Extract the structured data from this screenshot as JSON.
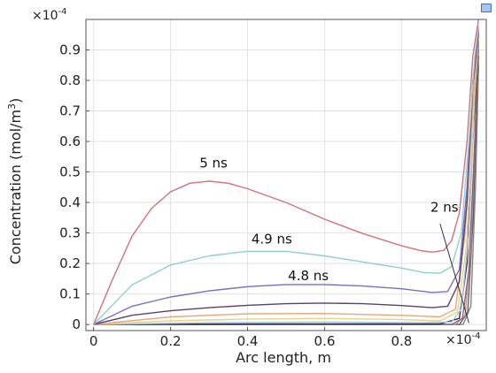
{
  "corner_icon": "plot-window-icon",
  "chart_data": {
    "type": "line",
    "title": "",
    "xlabel": "Arc length, m",
    "ylabel_main": "Concentration (mol/m",
    "ylabel_sup": "3",
    "ylabel_end": ")",
    "x_multiplier": "×10",
    "x_multiplier_exp": "-4",
    "y_multiplier": "×10",
    "y_multiplier_exp": "-4",
    "xlim": [
      -0.02,
      1.02
    ],
    "ylim": [
      -0.02,
      1.0
    ],
    "x_ticks": [
      0,
      0.2,
      0.4,
      0.6,
      0.8
    ],
    "x_tick_labels": [
      "0",
      "0.2",
      "0.4",
      "0.6",
      "0.8"
    ],
    "y_ticks": [
      0,
      0.1,
      0.2,
      0.3,
      0.4,
      0.5,
      0.6,
      0.7,
      0.8,
      0.9
    ],
    "y_tick_labels": [
      "0",
      "0.1",
      "0.2",
      "0.3",
      "0.4",
      "0.5",
      "0.6",
      "0.7",
      "0.8",
      "0.9"
    ],
    "grid": true,
    "annotations": [
      {
        "text": "5 ns",
        "x": 0.275,
        "y": 0.515
      },
      {
        "text": "4.9 ns",
        "x": 0.41,
        "y": 0.265
      },
      {
        "text": "4.8 ns",
        "x": 0.505,
        "y": 0.145
      },
      {
        "text": "2 ns",
        "x": 0.875,
        "y": 0.37
      }
    ],
    "pointer": {
      "from": [
        0.9,
        0.33
      ],
      "to": [
        0.975,
        0.005
      ]
    },
    "series": [
      {
        "color": "#d4707e",
        "points": [
          [
            0,
            0
          ],
          [
            0.05,
            0.15
          ],
          [
            0.1,
            0.29
          ],
          [
            0.15,
            0.38
          ],
          [
            0.2,
            0.435
          ],
          [
            0.25,
            0.463
          ],
          [
            0.3,
            0.47
          ],
          [
            0.35,
            0.463
          ],
          [
            0.4,
            0.445
          ],
          [
            0.5,
            0.4
          ],
          [
            0.6,
            0.345
          ],
          [
            0.7,
            0.298
          ],
          [
            0.8,
            0.258
          ],
          [
            0.85,
            0.242
          ],
          [
            0.88,
            0.237
          ],
          [
            0.91,
            0.243
          ],
          [
            0.93,
            0.275
          ],
          [
            0.95,
            0.365
          ],
          [
            0.97,
            0.6
          ],
          [
            0.985,
            0.88
          ],
          [
            1.0,
            1.0
          ]
        ]
      },
      {
        "color": "#8fd0cc",
        "points": [
          [
            0,
            0
          ],
          [
            0.1,
            0.13
          ],
          [
            0.2,
            0.195
          ],
          [
            0.3,
            0.225
          ],
          [
            0.4,
            0.24
          ],
          [
            0.5,
            0.24
          ],
          [
            0.6,
            0.225
          ],
          [
            0.7,
            0.205
          ],
          [
            0.8,
            0.185
          ],
          [
            0.86,
            0.17
          ],
          [
            0.9,
            0.168
          ],
          [
            0.93,
            0.19
          ],
          [
            0.955,
            0.3
          ],
          [
            0.975,
            0.6
          ],
          [
            0.99,
            0.88
          ],
          [
            1.0,
            0.98
          ]
        ]
      },
      {
        "color": "#7a6fc0",
        "points": [
          [
            0,
            0
          ],
          [
            0.1,
            0.06
          ],
          [
            0.2,
            0.09
          ],
          [
            0.3,
            0.11
          ],
          [
            0.4,
            0.124
          ],
          [
            0.5,
            0.131
          ],
          [
            0.6,
            0.131
          ],
          [
            0.7,
            0.126
          ],
          [
            0.8,
            0.117
          ],
          [
            0.88,
            0.105
          ],
          [
            0.92,
            0.108
          ],
          [
            0.95,
            0.18
          ],
          [
            0.97,
            0.45
          ],
          [
            0.985,
            0.8
          ],
          [
            1.0,
            0.97
          ]
        ]
      },
      {
        "color": "#5a4070",
        "points": [
          [
            0,
            0
          ],
          [
            0.1,
            0.03
          ],
          [
            0.2,
            0.045
          ],
          [
            0.3,
            0.055
          ],
          [
            0.4,
            0.063
          ],
          [
            0.5,
            0.068
          ],
          [
            0.6,
            0.07
          ],
          [
            0.7,
            0.068
          ],
          [
            0.8,
            0.062
          ],
          [
            0.88,
            0.055
          ],
          [
            0.92,
            0.06
          ],
          [
            0.95,
            0.14
          ],
          [
            0.97,
            0.4
          ],
          [
            0.985,
            0.78
          ],
          [
            1.0,
            0.96
          ]
        ]
      },
      {
        "color": "#e8a878",
        "points": [
          [
            0,
            0
          ],
          [
            0.2,
            0.025
          ],
          [
            0.4,
            0.035
          ],
          [
            0.6,
            0.036
          ],
          [
            0.8,
            0.03
          ],
          [
            0.9,
            0.025
          ],
          [
            0.94,
            0.05
          ],
          [
            0.965,
            0.3
          ],
          [
            0.985,
            0.72
          ],
          [
            1.0,
            0.95
          ]
        ]
      },
      {
        "color": "#e6d28a",
        "points": [
          [
            0,
            0
          ],
          [
            0.2,
            0.012
          ],
          [
            0.4,
            0.018
          ],
          [
            0.6,
            0.02
          ],
          [
            0.8,
            0.016
          ],
          [
            0.9,
            0.012
          ],
          [
            0.945,
            0.04
          ],
          [
            0.968,
            0.25
          ],
          [
            0.987,
            0.7
          ],
          [
            1.0,
            0.94
          ]
        ]
      },
      {
        "color": "#a8c8e8",
        "points": [
          [
            0,
            0
          ],
          [
            0.3,
            0.006
          ],
          [
            0.6,
            0.008
          ],
          [
            0.85,
            0.006
          ],
          [
            0.93,
            0.008
          ],
          [
            0.955,
            0.05
          ],
          [
            0.975,
            0.3
          ],
          [
            0.99,
            0.75
          ],
          [
            1.0,
            0.95
          ]
        ]
      },
      {
        "color": "#2f2f40",
        "points": [
          [
            0,
            0
          ],
          [
            0.5,
            0.002
          ],
          [
            0.9,
            0.002
          ],
          [
            0.95,
            0.02
          ],
          [
            0.97,
            0.2
          ],
          [
            0.985,
            0.6
          ],
          [
            1.0,
            0.93
          ]
        ]
      },
      {
        "color": "#9a6070",
        "points": [
          [
            0,
            0
          ],
          [
            0.93,
            0.0
          ],
          [
            0.958,
            0.02
          ],
          [
            0.975,
            0.18
          ],
          [
            0.99,
            0.6
          ],
          [
            1.0,
            0.92
          ]
        ]
      },
      {
        "color": "#b09890",
        "points": [
          [
            0,
            0
          ],
          [
            0.94,
            0.0
          ],
          [
            0.965,
            0.03
          ],
          [
            0.98,
            0.25
          ],
          [
            0.993,
            0.7
          ],
          [
            1.0,
            0.9
          ]
        ]
      },
      {
        "color": "#606060",
        "points": [
          [
            0,
            0
          ],
          [
            0.95,
            0.0
          ],
          [
            0.972,
            0.04
          ],
          [
            0.986,
            0.35
          ],
          [
            0.997,
            0.78
          ],
          [
            1.0,
            0.88
          ]
        ]
      },
      {
        "color": "#808098",
        "points": [
          [
            0,
            0
          ],
          [
            0.96,
            0.0
          ],
          [
            0.98,
            0.06
          ],
          [
            0.992,
            0.45
          ],
          [
            1.0,
            0.85
          ]
        ]
      }
    ]
  }
}
